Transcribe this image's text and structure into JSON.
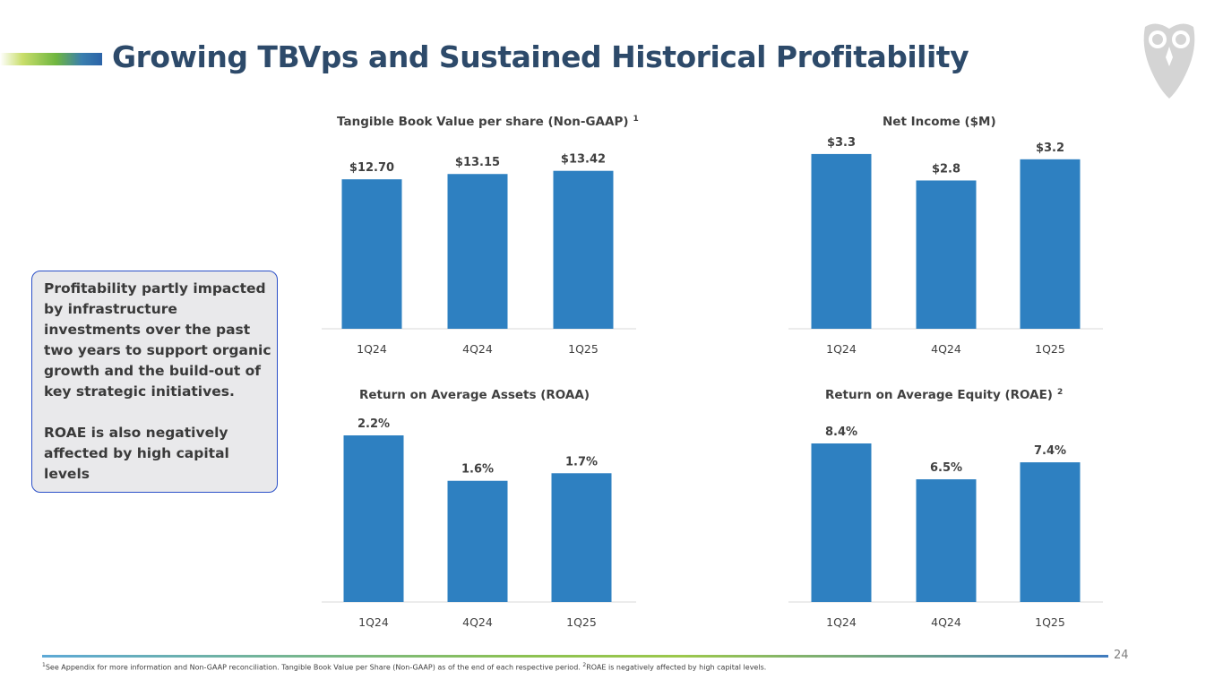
{
  "slide": {
    "title": "Growing TBVps and Sustained Historical Profitability",
    "page_number": "24",
    "callout_p1": "Profitability partly impacted by infrastructure investments over the past two years to support organic growth and the build-out of key strategic initiatives.",
    "callout_p2": "ROAE is also negatively affected by high capital levels",
    "footnote_1_marker": "1",
    "footnote_1": "See Appendix for more information and Non-GAAP reconciliation. Tangible Book Value per Share (Non-GAAP) as of the end of each respective period. ",
    "footnote_2_marker": "2",
    "footnote_2": "ROAE is negatively affected by high capital levels.",
    "bar_color": "#2e80c1",
    "title_color": "#2d4a6a"
  },
  "chart_data": [
    {
      "type": "bar",
      "title": "Tangible Book Value per share (Non-GAAP)",
      "title_sup": "1",
      "categories": [
        "1Q24",
        "4Q24",
        "1Q25"
      ],
      "values": [
        12.7,
        13.15,
        13.42
      ],
      "labels": [
        "$12.70",
        "$13.15",
        "$13.42"
      ],
      "ylim": [
        0,
        15.3
      ],
      "xlabel": "",
      "ylabel": ""
    },
    {
      "type": "bar",
      "title": "Net Income ($M)",
      "title_sup": "",
      "categories": [
        "1Q24",
        "4Q24",
        "1Q25"
      ],
      "values": [
        3.3,
        2.8,
        3.2
      ],
      "labels": [
        "$3.3",
        "$2.8",
        "$3.2"
      ],
      "ylim": [
        0,
        3.4
      ],
      "xlabel": "",
      "ylabel": ""
    },
    {
      "type": "bar",
      "title": "Return on Average Assets (ROAA)",
      "title_sup": "",
      "categories": [
        "1Q24",
        "4Q24",
        "1Q25"
      ],
      "values": [
        2.2,
        1.6,
        1.7
      ],
      "labels": [
        "2.2%",
        "1.6%",
        "1.7%"
      ],
      "ylim": [
        0,
        2.2
      ],
      "xlabel": "",
      "ylabel": ""
    },
    {
      "type": "bar",
      "title": "Return on Average Equity (ROAE)",
      "title_sup": "2",
      "categories": [
        "1Q24",
        "4Q24",
        "1Q25"
      ],
      "values": [
        8.4,
        6.5,
        7.4
      ],
      "labels": [
        "8.4%",
        "6.5%",
        "7.4%"
      ],
      "ylim": [
        0,
        8.4
      ],
      "xlabel": "",
      "ylabel": ""
    }
  ]
}
